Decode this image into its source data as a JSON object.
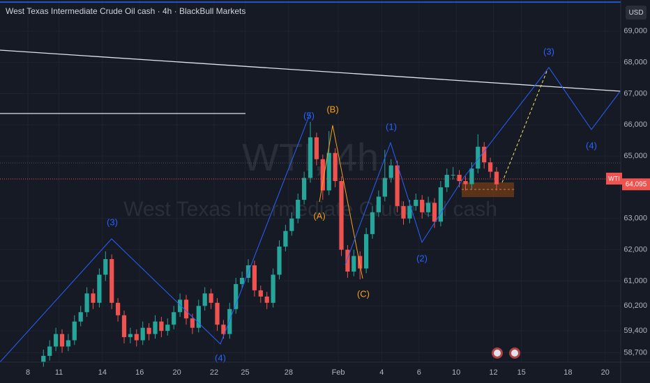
{
  "chart_data": {
    "type": "candlestick",
    "title": "West Texas Intermediate Crude Oil cash · 4h · BlackBull Markets",
    "watermark_symbol": "WTI, 4h",
    "watermark_name": "West Texas Intermediate Crude Oil cash",
    "currency": "USD",
    "symbol": "WTI",
    "last_price": {
      "value": 64095,
      "label": "64,095"
    },
    "up_color": "#26a69a",
    "down_color": "#ef5350",
    "grid": true,
    "xlim": [
      0,
      200
    ],
    "ylim": [
      58400,
      70000
    ],
    "yticks": [
      {
        "value": 69000,
        "label": "69,000"
      },
      {
        "value": 68000,
        "label": "68,000"
      },
      {
        "value": 67000,
        "label": "67,000"
      },
      {
        "value": 66000,
        "label": "66,000"
      },
      {
        "value": 65000,
        "label": "65,000"
      },
      {
        "value": 63000,
        "label": "63,000"
      },
      {
        "value": 62000,
        "label": "62,000"
      },
      {
        "value": 61000,
        "label": "61,000"
      },
      {
        "value": 60200,
        "label": "60,200"
      },
      {
        "value": 59400,
        "label": "59,400"
      },
      {
        "value": 58700,
        "label": "58,700"
      }
    ],
    "xticks": [
      {
        "value": 9,
        "label": "8"
      },
      {
        "value": 19,
        "label": "11"
      },
      {
        "value": 33,
        "label": "14"
      },
      {
        "value": 45,
        "label": "16"
      },
      {
        "value": 57,
        "label": "20"
      },
      {
        "value": 69,
        "label": "22"
      },
      {
        "value": 79,
        "label": "25"
      },
      {
        "value": 93,
        "label": "28"
      },
      {
        "value": 109,
        "label": "Feb"
      },
      {
        "value": 123,
        "label": "4"
      },
      {
        "value": 135,
        "label": "6"
      },
      {
        "value": 147,
        "label": "10"
      },
      {
        "value": 159,
        "label": "12"
      },
      {
        "value": 168,
        "label": "15"
      },
      {
        "value": 183,
        "label": "18"
      },
      {
        "value": 195,
        "label": "20"
      }
    ],
    "x": [
      14,
      16,
      18,
      20,
      22,
      24,
      26,
      28,
      30,
      32,
      34,
      36,
      38,
      40,
      42,
      44,
      46,
      48,
      50,
      52,
      54,
      56,
      58,
      60,
      62,
      64,
      66,
      68,
      70,
      72,
      74,
      76,
      78,
      80,
      82,
      84,
      86,
      88,
      90,
      92,
      94,
      96,
      98,
      100,
      102,
      104,
      106,
      108,
      110,
      112,
      114,
      116,
      118,
      120,
      122,
      124,
      126,
      128,
      130,
      132,
      134,
      136,
      138,
      140,
      142,
      144,
      146,
      148,
      150,
      152,
      154,
      156,
      158,
      160
    ],
    "ohlc": [
      [
        58400,
        58800,
        58250,
        58600
      ],
      [
        58600,
        59100,
        58450,
        58900
      ],
      [
        58900,
        59500,
        58750,
        59300
      ],
      [
        59300,
        59450,
        58700,
        58900
      ],
      [
        58900,
        59300,
        58750,
        59100
      ],
      [
        59100,
        59900,
        58950,
        59700
      ],
      [
        59700,
        60200,
        59550,
        60000
      ],
      [
        60000,
        60800,
        59850,
        60600
      ],
      [
        60600,
        60750,
        60100,
        60300
      ],
      [
        60300,
        61400,
        60150,
        61200
      ],
      [
        61200,
        61950,
        61000,
        61700
      ],
      [
        61700,
        61850,
        60100,
        60300
      ],
      [
        60300,
        60450,
        59700,
        59900
      ],
      [
        59900,
        60050,
        59000,
        59200
      ],
      [
        59200,
        59500,
        59000,
        59300
      ],
      [
        59300,
        59450,
        58900,
        59100
      ],
      [
        59100,
        59700,
        58950,
        59500
      ],
      [
        59500,
        59650,
        59100,
        59300
      ],
      [
        59300,
        59900,
        59150,
        59700
      ],
      [
        59700,
        59850,
        59200,
        59400
      ],
      [
        59400,
        59800,
        59250,
        59600
      ],
      [
        59600,
        60200,
        59450,
        60000
      ],
      [
        60000,
        60600,
        59850,
        60400
      ],
      [
        60400,
        60550,
        59600,
        59800
      ],
      [
        59800,
        59950,
        59300,
        59500
      ],
      [
        59500,
        60400,
        59350,
        60200
      ],
      [
        60200,
        60800,
        60050,
        60600
      ],
      [
        60600,
        60750,
        60100,
        60300
      ],
      [
        60300,
        60450,
        59400,
        59600
      ],
      [
        59600,
        59750,
        59150,
        59300
      ],
      [
        59300,
        60300,
        59150,
        60100
      ],
      [
        60100,
        61100,
        59950,
        60900
      ],
      [
        60900,
        61300,
        60750,
        61100
      ],
      [
        61100,
        61700,
        60950,
        61500
      ],
      [
        61500,
        61650,
        60500,
        60700
      ],
      [
        60700,
        60850,
        60300,
        60500
      ],
      [
        60500,
        60650,
        60100,
        60300
      ],
      [
        60300,
        61400,
        60150,
        61200
      ],
      [
        61200,
        62300,
        61050,
        62100
      ],
      [
        62100,
        62800,
        61950,
        62600
      ],
      [
        62600,
        63200,
        62450,
        63000
      ],
      [
        63000,
        63800,
        62850,
        63600
      ],
      [
        63600,
        64500,
        63450,
        64300
      ],
      [
        64300,
        66100,
        64150,
        65600
      ],
      [
        65600,
        65750,
        64700,
        64900
      ],
      [
        64900,
        65050,
        63600,
        63900
      ],
      [
        63900,
        65800,
        63750,
        65100
      ],
      [
        65100,
        65250,
        64000,
        64200
      ],
      [
        64200,
        64350,
        61800,
        62000
      ],
      [
        62000,
        62150,
        61100,
        61300
      ],
      [
        61300,
        62000,
        61150,
        61800
      ],
      [
        61800,
        61950,
        61050,
        61400
      ],
      [
        61400,
        62700,
        61250,
        62500
      ],
      [
        62500,
        63400,
        62350,
        63200
      ],
      [
        63200,
        63900,
        63050,
        63700
      ],
      [
        63700,
        65200,
        63550,
        64300
      ],
      [
        64300,
        64900,
        64150,
        64700
      ],
      [
        64700,
        64850,
        63200,
        63400
      ],
      [
        63400,
        63550,
        62800,
        63000
      ],
      [
        63000,
        63600,
        62850,
        63400
      ],
      [
        63400,
        63800,
        63250,
        63600
      ],
      [
        63600,
        63750,
        63000,
        63200
      ],
      [
        63200,
        63700,
        63050,
        63500
      ],
      [
        63500,
        63650,
        62700,
        62900
      ],
      [
        62900,
        64200,
        62750,
        64000
      ],
      [
        64000,
        64600,
        63850,
        64400
      ],
      [
        64400,
        64650,
        64250,
        64400
      ],
      [
        64400,
        64550,
        64000,
        64200
      ],
      [
        64200,
        64350,
        63900,
        64100
      ],
      [
        64100,
        64800,
        63950,
        64600
      ],
      [
        64600,
        65700,
        64450,
        65300
      ],
      [
        65300,
        65450,
        64600,
        64800
      ],
      [
        64800,
        64950,
        64300,
        64500
      ],
      [
        64500,
        64650,
        63900,
        64095
      ]
    ],
    "annotations": [
      {
        "text": "(3)",
        "color": "#2962ff"
      },
      {
        "text": "(4)",
        "color": "#2962ff"
      },
      {
        "text": "(5)",
        "color": "#2962ff"
      },
      {
        "text": "(B)",
        "color": "#f7a21b"
      },
      {
        "text": "(A)",
        "color": "#f7a21b"
      },
      {
        "text": "(C)",
        "color": "#f7a21b"
      },
      {
        "text": "(1)",
        "color": "#2962ff"
      },
      {
        "text": "(2)",
        "color": "#2962ff"
      },
      {
        "text": "(3)",
        "color": "#2962ff"
      },
      {
        "text": "(4)",
        "color": "#2962ff"
      }
    ]
  }
}
